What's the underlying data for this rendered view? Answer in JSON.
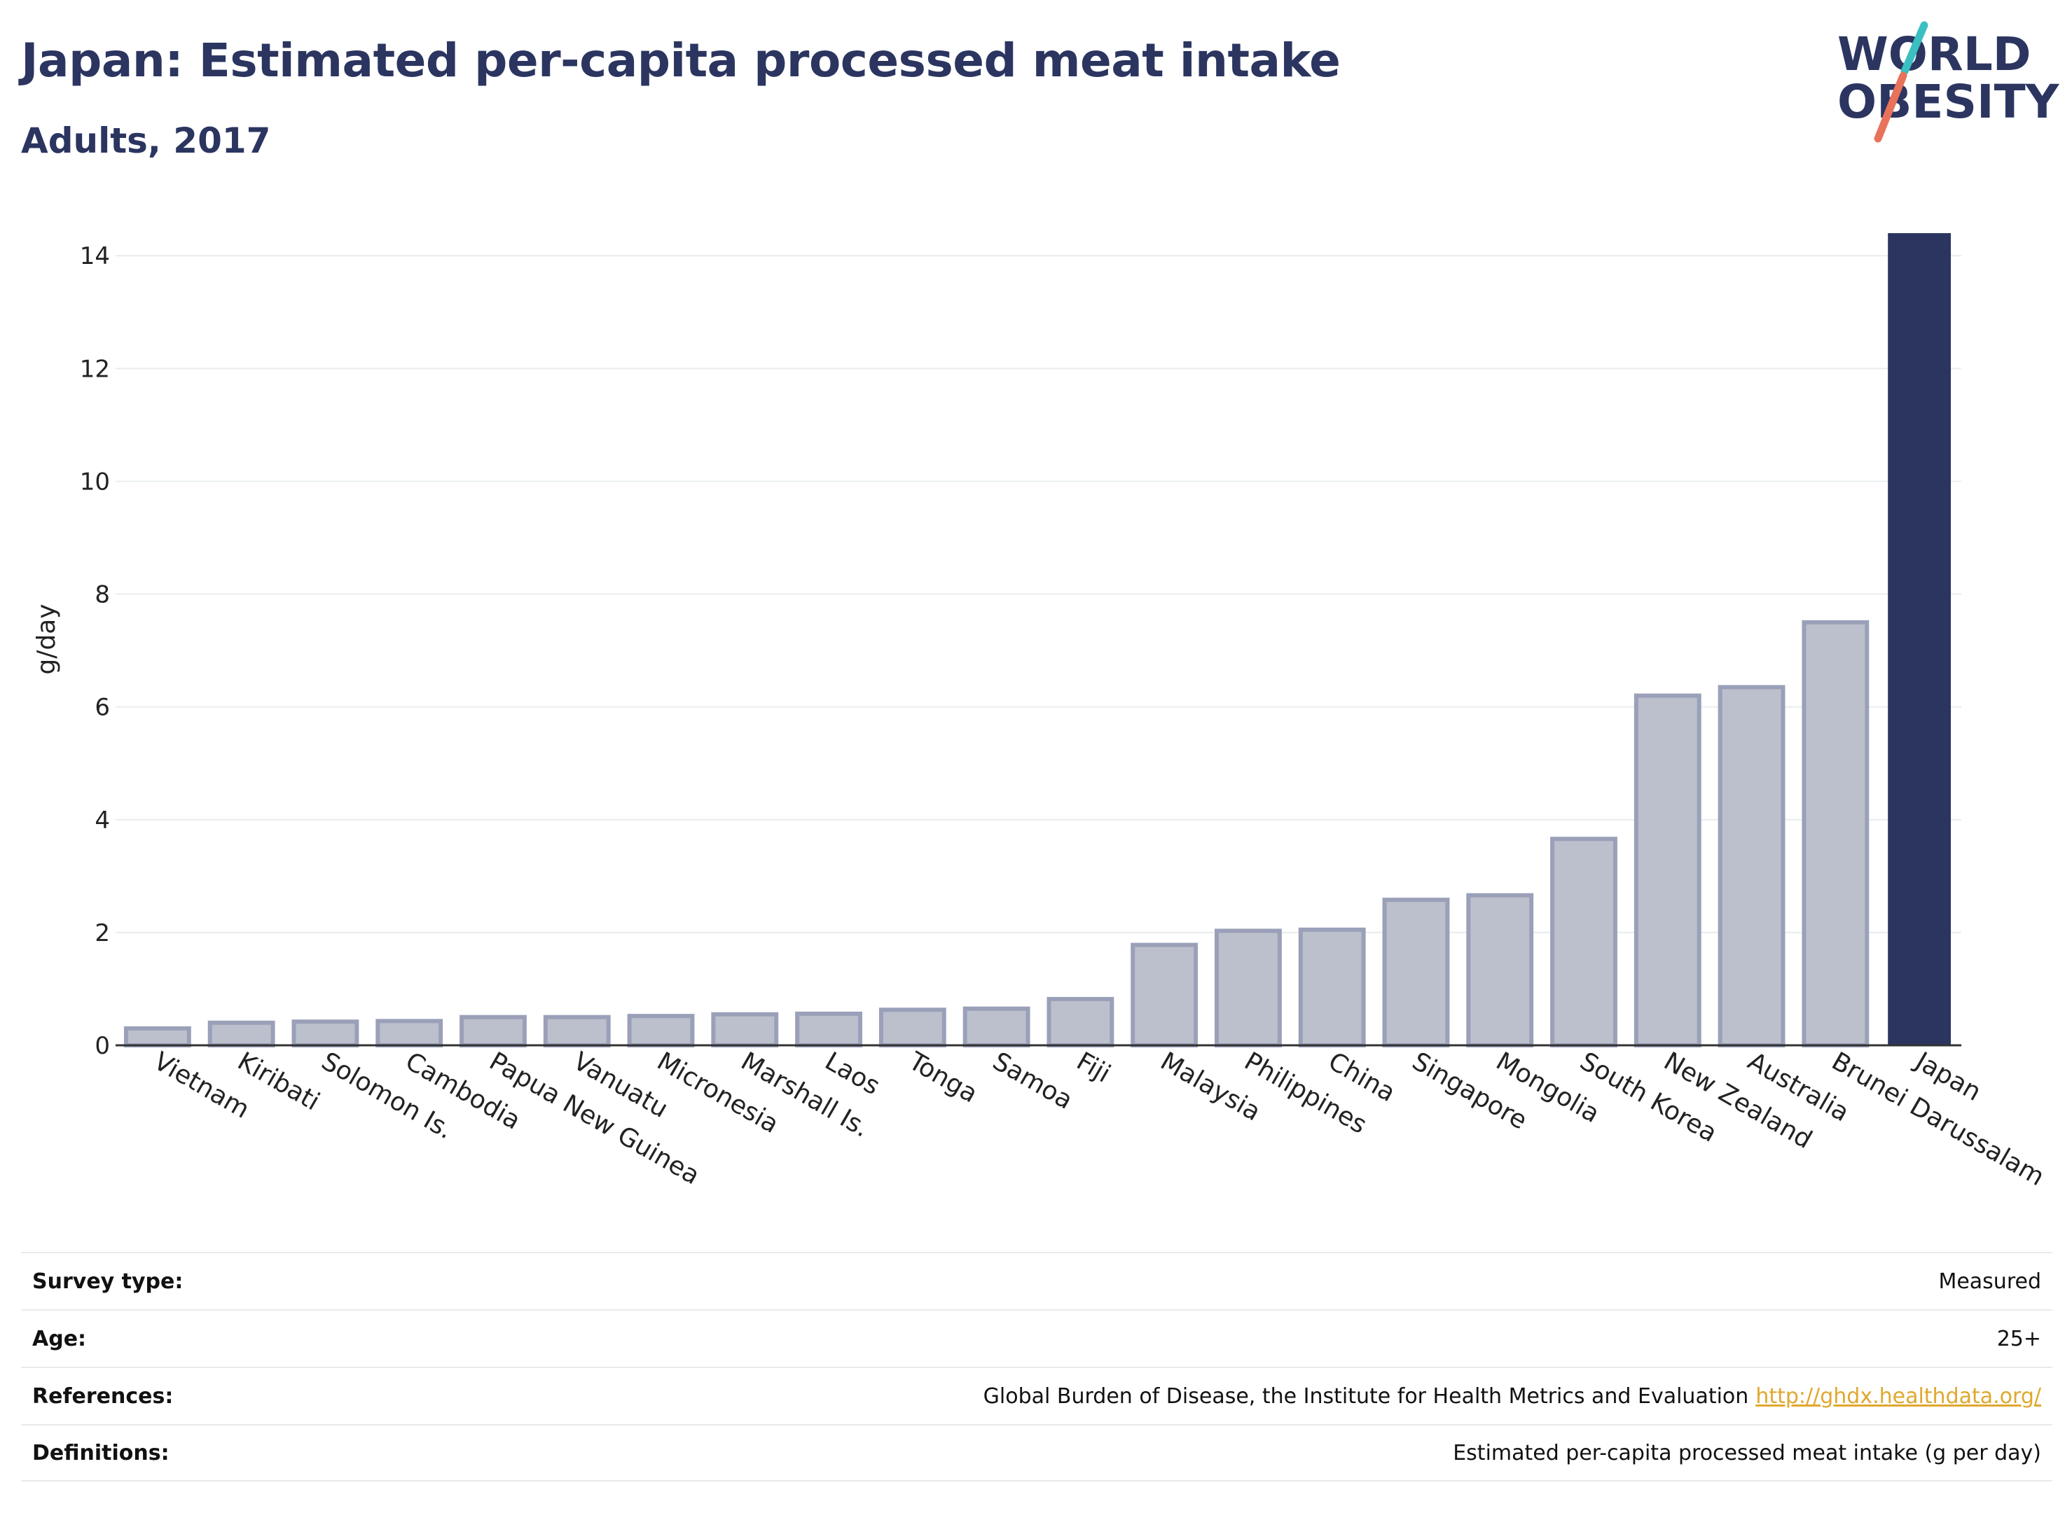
{
  "header": {
    "title": "Japan: Estimated per-capita processed meat intake",
    "subtitle": "Adults, 2017"
  },
  "logo": {
    "line1": "WORLD",
    "line2": "OBESITY",
    "colors": {
      "text": "#2b3560",
      "slash_teal": "#3bbfc1",
      "slash_coral": "#e8735a"
    }
  },
  "chart_data": {
    "type": "bar",
    "title": "Japan: Estimated per-capita processed meat intake",
    "subtitle": "Adults, 2017",
    "xlabel": "",
    "ylabel": "g/day",
    "ylim": [
      0,
      14.4
    ],
    "yticks": [
      0,
      2,
      4,
      6,
      8,
      10,
      12,
      14
    ],
    "grid": true,
    "highlight": "Japan",
    "colors": {
      "highlight": "#2b3560",
      "other_fill": "#bcc0cc",
      "other_stroke": "#9aa0b8"
    },
    "categories": [
      "Vietnam",
      "Kiribati",
      "Solomon Is.",
      "Cambodia",
      "Papua New Guinea",
      "Vanuatu",
      "Micronesia",
      "Marshall Is.",
      "Laos",
      "Tonga",
      "Samoa",
      "Fiji",
      "Malaysia",
      "Philippines",
      "China",
      "Singapore",
      "Mongolia",
      "South Korea",
      "New Zealand",
      "Australia",
      "Brunei Darussalam",
      "Japan"
    ],
    "values": [
      0.3,
      0.4,
      0.42,
      0.43,
      0.5,
      0.5,
      0.52,
      0.55,
      0.56,
      0.63,
      0.65,
      0.82,
      1.78,
      2.03,
      2.05,
      2.58,
      2.66,
      3.66,
      6.2,
      6.35,
      7.5,
      14.4
    ]
  },
  "info": {
    "rows": [
      {
        "key": "Survey type:",
        "value": "Measured"
      },
      {
        "key": "Age:",
        "value": "25+"
      },
      {
        "key": "References:",
        "value": "Global Burden of Disease, the Institute for Health Metrics and Evaluation",
        "link": "http://ghdx.healthdata.org/"
      },
      {
        "key": "Definitions:",
        "value": "Estimated per-capita processed meat intake (g per day)"
      }
    ]
  }
}
